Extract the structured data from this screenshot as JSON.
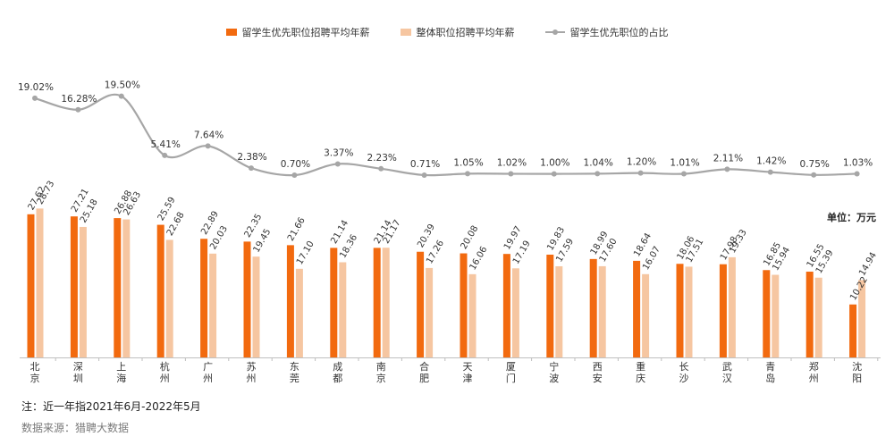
{
  "legend": {
    "series1": "留学生优先职位招聘平均年薪",
    "series2": "整体职位招聘平均年薪",
    "series3": "留学生优先职位的占比"
  },
  "unit_label": "单位：万元",
  "note": "注：近一年指2021年6月-2022年5月",
  "source": "数据来源：猎聘大数据",
  "colors": {
    "series1": "#f26a0f",
    "series2": "#f6c6a1",
    "line": "#a6a6a6"
  },
  "chart_data": {
    "type": "bar",
    "categories": [
      "北京",
      "深圳",
      "上海",
      "杭州",
      "广州",
      "苏州",
      "东莞",
      "成都",
      "南京",
      "合肥",
      "天津",
      "厦门",
      "宁波",
      "西安",
      "重庆",
      "长沙",
      "武汉",
      "青岛",
      "郑州",
      "沈阳"
    ],
    "series": [
      {
        "name": "留学生优先职位招聘平均年薪",
        "values": [
          27.62,
          27.21,
          26.88,
          25.59,
          22.89,
          22.35,
          21.66,
          21.14,
          21.14,
          20.39,
          20.08,
          19.97,
          19.83,
          18.99,
          18.64,
          18.06,
          17.98,
          16.85,
          16.55,
          10.22
        ]
      },
      {
        "name": "整体职位招聘平均年薪",
        "values": [
          28.73,
          25.18,
          26.63,
          22.68,
          20.03,
          19.45,
          17.1,
          18.36,
          21.17,
          17.26,
          16.06,
          17.19,
          17.59,
          17.6,
          16.07,
          17.51,
          19.33,
          15.94,
          15.39,
          14.94
        ]
      }
    ],
    "line_series": {
      "name": "留学生优先职位的占比",
      "type": "line",
      "values": [
        19.02,
        16.28,
        19.5,
        5.41,
        7.64,
        2.38,
        0.7,
        3.37,
        2.23,
        0.71,
        1.05,
        1.02,
        1.0,
        1.04,
        1.2,
        1.01,
        2.11,
        1.42,
        0.75,
        1.03
      ],
      "labels": [
        "19.02%",
        "16.28%",
        "19.50%",
        "5.41%",
        "7.64%",
        "2.38%",
        "0.70%",
        "3.37%",
        "2.23%",
        "0.71%",
        "1.05%",
        "1.02%",
        "1.00%",
        "1.04%",
        "1.20%",
        "1.01%",
        "2.11%",
        "1.42%",
        "0.75%",
        "1.03%"
      ]
    },
    "unit": "万元",
    "grid": false,
    "legend_position": "top"
  }
}
